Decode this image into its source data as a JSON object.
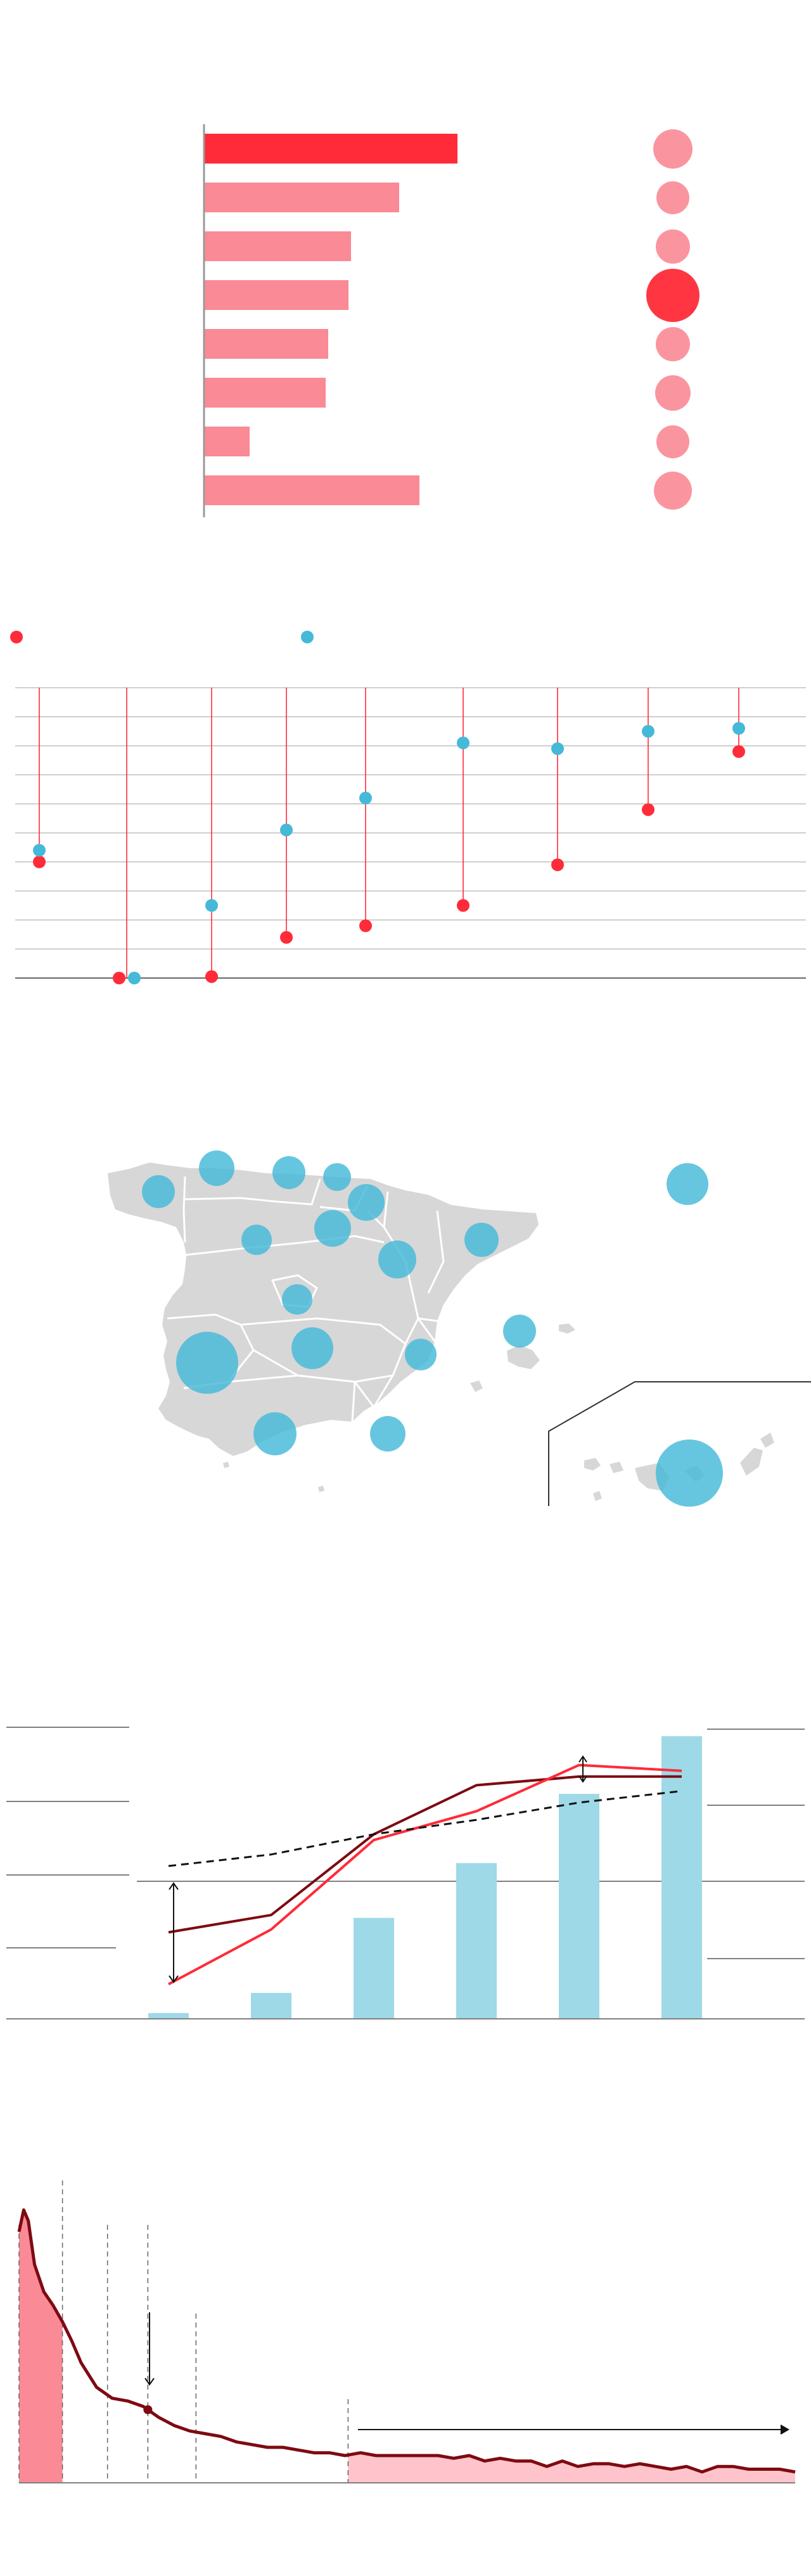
{
  "colors": {
    "red": "#FF2B38",
    "pink": "#F98A96",
    "pink_light": "#FFC4CB",
    "blue": "#45B9D8",
    "blue_light": "#9ED9E7",
    "dark_red": "#7E0A12",
    "land": "#D7D7D7",
    "grid": "#BFBFBF",
    "axis": "#808080"
  },
  "chart_data": [
    {
      "id": "ranked-bars",
      "type": "bar",
      "orientation": "horizontal",
      "categories": [
        "",
        "",
        "",
        "",
        "",
        "",
        "",
        ""
      ],
      "values": [
        100,
        77,
        58,
        57,
        49,
        48,
        18,
        85
      ],
      "highlight_index": 0,
      "xlim": [
        0,
        100
      ],
      "bubbles": {
        "values": [
          31,
          26,
          27,
          42,
          27,
          28,
          26,
          30
        ],
        "highlight_index": 3
      }
    },
    {
      "id": "dumbbell",
      "type": "scatter",
      "categories": [
        "",
        "",
        "",
        "",
        "",
        "",
        "",
        "",
        ""
      ],
      "series": [
        {
          "color_key": "red",
          "values": [
            40,
            0,
            0.5,
            14,
            18,
            25,
            39,
            58,
            78
          ]
        },
        {
          "color_key": "blue",
          "values": [
            44,
            0,
            25,
            51,
            62,
            81,
            79,
            85,
            86
          ]
        }
      ],
      "ylim": [
        0,
        100
      ],
      "gridlines": 10
    },
    {
      "id": "region-map",
      "type": "bubble-map",
      "bubbles": [
        {
          "value": 26
        },
        {
          "value": 28
        },
        {
          "value": 26
        },
        {
          "value": 22
        },
        {
          "value": 29
        },
        {
          "value": 29
        },
        {
          "value": 24
        },
        {
          "value": 27
        },
        {
          "value": 30
        },
        {
          "value": 24
        },
        {
          "value": 33
        },
        {
          "value": 49
        },
        {
          "value": 25
        },
        {
          "value": 26
        },
        {
          "value": 34
        },
        {
          "value": 28
        },
        {
          "value": 53
        },
        {
          "value": 33
        }
      ]
    },
    {
      "id": "combo",
      "type": "bar",
      "categories": [
        "",
        "",
        "",
        "",
        "",
        ""
      ],
      "values": [
        2,
        9,
        35,
        54,
        78,
        98
      ],
      "ylim": [
        0,
        100
      ],
      "lines": [
        {
          "color_key": "dark_red",
          "values": [
            30,
            36,
            64,
            81,
            84,
            84
          ]
        },
        {
          "color_key": "red",
          "values": [
            12,
            31,
            62,
            72,
            88,
            86
          ]
        },
        {
          "color_key": "dashed",
          "values": [
            53,
            57,
            64,
            69,
            75,
            79
          ]
        }
      ]
    },
    {
      "id": "area",
      "type": "area",
      "x": [
        0,
        3,
        6,
        10,
        16,
        22,
        28,
        34,
        40,
        50,
        60,
        70,
        80,
        90,
        100,
        110,
        120,
        130,
        140,
        150,
        160,
        170,
        180,
        190,
        200,
        210,
        220,
        230,
        240,
        250,
        260,
        270,
        280,
        290,
        300,
        310,
        320,
        330,
        340,
        350,
        360,
        370,
        380,
        390,
        400,
        410,
        420,
        430,
        440,
        450,
        460,
        470,
        480,
        490,
        500
      ],
      "y": [
        92,
        100,
        96,
        80,
        70,
        65,
        59,
        52,
        44,
        35,
        31,
        30,
        28,
        24,
        21,
        19,
        18,
        17,
        15,
        14,
        13,
        13,
        12,
        11,
        11,
        10,
        11,
        10,
        10,
        10,
        10,
        10,
        9,
        10,
        8,
        9,
        8,
        8,
        6,
        8,
        6,
        7,
        7,
        6,
        7,
        6,
        5,
        6,
        4,
        6,
        6,
        5,
        5,
        5,
        4
      ],
      "ylim": [
        0,
        105
      ],
      "xlim": [
        0,
        500
      ],
      "marker_x": 83,
      "shaded_ranges": [
        [
          0,
          28
        ],
        [
          212,
          500
        ]
      ],
      "dashed_x": [
        0,
        28,
        57,
        83,
        114,
        212
      ]
    }
  ]
}
